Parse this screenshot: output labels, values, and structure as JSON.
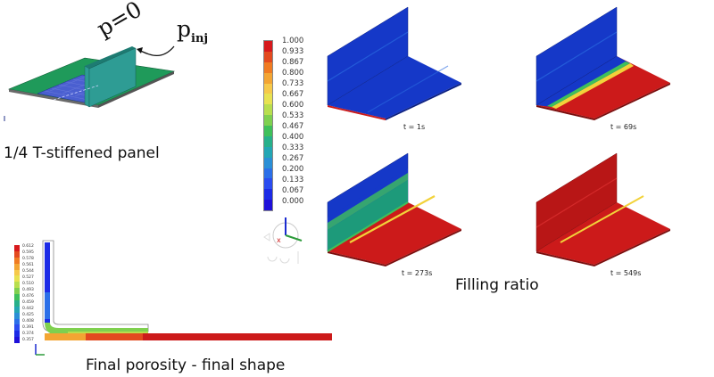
{
  "top_left": {
    "p_zero_label": "p=0",
    "p_inj_base": "p",
    "p_inj_sub": "inj",
    "caption": "1/4 T-stiffened panel"
  },
  "colorbar_main": {
    "ticks": [
      "1.000",
      "0.933",
      "0.867",
      "0.800",
      "0.733",
      "0.667",
      "0.600",
      "0.533",
      "0.467",
      "0.400",
      "0.333",
      "0.267",
      "0.200",
      "0.133",
      "0.067",
      "0.000"
    ],
    "colors": [
      "#d7191c",
      "#e34a1f",
      "#f07b22",
      "#f3a533",
      "#f6c94a",
      "#e8e251",
      "#b8de4e",
      "#7fd04f",
      "#3fc05a",
      "#27b08a",
      "#23a6b4",
      "#2a8fd6",
      "#2b6fe8",
      "#2a4cf0",
      "#1c2be6",
      "#1e10d9"
    ]
  },
  "snapshots": [
    {
      "time": "t = 1s"
    },
    {
      "time": "t = 69s"
    },
    {
      "time": "t = 273s"
    },
    {
      "time": "t = 549s"
    }
  ],
  "filling_caption": "Filling ratio",
  "porosity": {
    "caption": "Final porosity - final shape",
    "ticks": [
      "0.612",
      "0.595",
      "0.578",
      "0.561",
      "0.544",
      "0.527",
      "0.510",
      "0.493",
      "0.476",
      "0.459",
      "0.442",
      "0.425",
      "0.408",
      "0.391",
      "0.374",
      "0.357"
    ]
  },
  "colors": {
    "red": "#cc1a1a",
    "blue": "#1538c8",
    "teal": "#2e9c94",
    "green": "#1f9a5a"
  }
}
